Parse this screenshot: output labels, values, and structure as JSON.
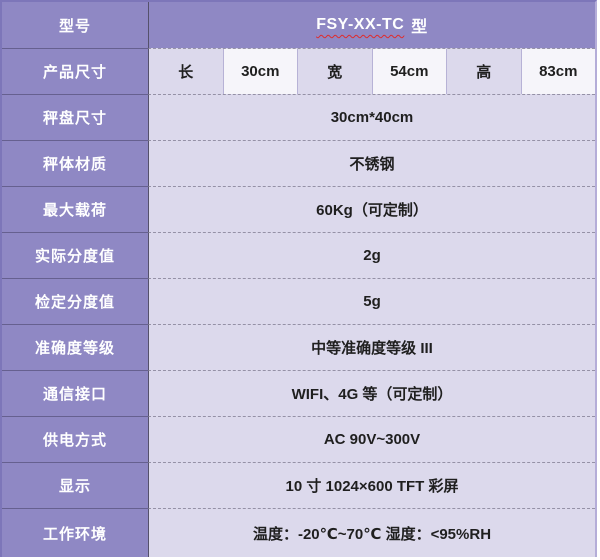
{
  "table": {
    "header": {
      "label": "型号",
      "model_code": "FSY-XX-TC",
      "model_suffix": "型"
    },
    "dimensions": {
      "label": "产品尺寸",
      "cells": [
        "长",
        "30cm",
        "宽",
        "54cm",
        "高",
        "83cm"
      ]
    },
    "rows": [
      {
        "label": "秤盘尺寸",
        "value": "30cm*40cm"
      },
      {
        "label": "秤体材质",
        "value": "不锈钢"
      },
      {
        "label": "最大载荷",
        "value": "60Kg（可定制）"
      },
      {
        "label": "实际分度值",
        "value": "2g"
      },
      {
        "label": "检定分度值",
        "value": "5g"
      },
      {
        "label": "准确度等级",
        "value": "中等准确度等级 III"
      },
      {
        "label": "通信接口",
        "value": "WIFI、4G 等（可定制）"
      },
      {
        "label": "供电方式",
        "value": "AC 90V~300V"
      },
      {
        "label": "显示",
        "value": "10 寸 1024×600 TFT 彩屏"
      },
      {
        "label": "工作环境",
        "value": "温度：-20℃~70℃  湿度：<95%RH"
      }
    ]
  },
  "colors": {
    "label-purple": "#8f88c4",
    "value-lavender": "#dcd9ec",
    "cell-white": "#f6f5fa",
    "border-dark-purple": "#7d76b9",
    "border-light-purple": "#b4add8",
    "underline-red": "#e02b2b",
    "value-text": "#1f1f1f",
    "label-text": "#ffffff"
  }
}
